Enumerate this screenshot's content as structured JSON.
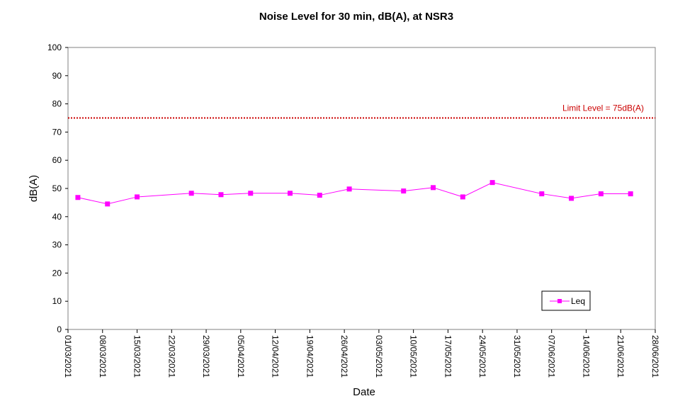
{
  "chart_data": {
    "type": "line",
    "title": "Noise Level for 30 min, dB(A), at NSR3",
    "xlabel": "Date",
    "ylabel": "dB(A)",
    "ylim": [
      0,
      100
    ],
    "yticks": [
      0,
      10,
      20,
      30,
      40,
      50,
      60,
      70,
      80,
      90,
      100
    ],
    "xlim": [
      "2021-03-01",
      "2021-06-28"
    ],
    "xticks": [
      "01/03/2021",
      "08/03/2021",
      "15/03/2021",
      "22/03/2021",
      "29/03/2021",
      "05/04/2021",
      "12/04/2021",
      "19/04/2021",
      "26/04/2021",
      "03/05/2021",
      "10/05/2021",
      "17/05/2021",
      "24/05/2021",
      "31/05/2021",
      "07/06/2021",
      "14/06/2021",
      "21/06/2021",
      "28/06/2021"
    ],
    "grid": false,
    "legend_position": "bottom-right",
    "series": [
      {
        "name": "Leq",
        "color": "#ff00ff",
        "marker": "square",
        "x": [
          "2021-03-03",
          "2021-03-09",
          "2021-03-15",
          "2021-03-26",
          "2021-04-01",
          "2021-04-07",
          "2021-04-15",
          "2021-04-21",
          "2021-04-27",
          "2021-05-08",
          "2021-05-14",
          "2021-05-20",
          "2021-05-26",
          "2021-06-05",
          "2021-06-11",
          "2021-06-17",
          "2021-06-23"
        ],
        "y": [
          46.8,
          44.5,
          47.0,
          48.3,
          47.8,
          48.3,
          48.3,
          47.6,
          49.8,
          49.1,
          50.3,
          47.0,
          52.1,
          48.1,
          46.5,
          48.1,
          48.1
        ]
      }
    ],
    "reference_lines": [
      {
        "label": "Limit Level  = 75dB(A)",
        "y": 75,
        "color": "#cc0000",
        "style": "dotted"
      }
    ]
  }
}
